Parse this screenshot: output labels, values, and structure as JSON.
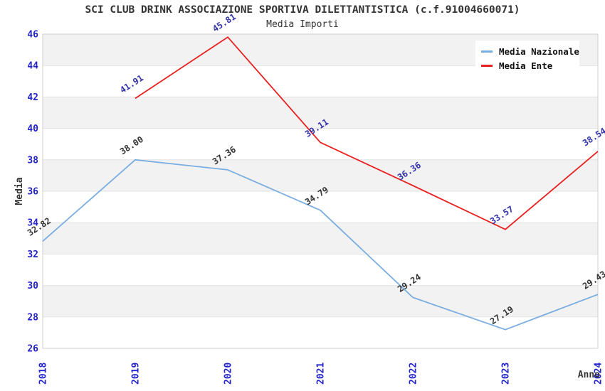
{
  "chart_data": {
    "type": "line",
    "title": "SCI CLUB DRINK ASSOCIAZIONE SPORTIVA DILETTANTISTICA (c.f.91004660071)",
    "subtitle": "Media Importi",
    "xlabel": "Anno",
    "ylabel": "Media",
    "x_categories": [
      "2018",
      "2019",
      "2020",
      "2021",
      "2022",
      "2023",
      "2024"
    ],
    "ylim": [
      26,
      46
    ],
    "ytick_step": 2,
    "yticks": [
      26,
      28,
      30,
      32,
      34,
      36,
      38,
      40,
      42,
      44,
      46
    ],
    "grid": "horizontal-bands",
    "legend_position": "top-right",
    "series": [
      {
        "name": "Media Nazionale",
        "color": "#7aade0",
        "label_color": "#333333",
        "x": [
          "2018",
          "2019",
          "2020",
          "2021",
          "2022",
          "2023",
          "2024"
        ],
        "values": [
          32.82,
          38.0,
          37.36,
          34.79,
          29.24,
          27.19,
          29.43
        ]
      },
      {
        "name": "Media Ente",
        "color": "#e82020",
        "label_color": "#3333aa",
        "x": [
          "2019",
          "2020",
          "2021",
          "2022",
          "2023",
          "2024"
        ],
        "values": [
          41.91,
          45.81,
          39.11,
          36.36,
          33.57,
          38.54
        ]
      }
    ],
    "colors": {
      "band_gray": "#f2f2f2",
      "band_white": "#ffffff",
      "gridline": "#e2e2e2",
      "plot_border": "#cfcfcf",
      "tick_label": "#2222cc",
      "axis_title": "#333333"
    }
  }
}
